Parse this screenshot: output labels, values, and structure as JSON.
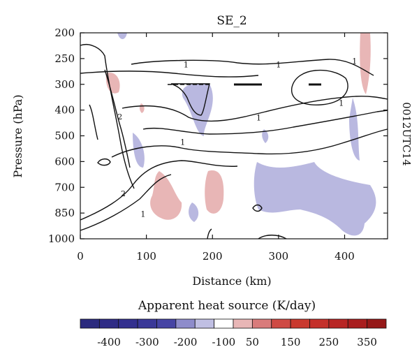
{
  "chart_data": {
    "type": "contour",
    "title": "SE_2",
    "side_label": "0012UTC14",
    "xlabel": "Distance (km)",
    "ylabel": "Pressure (hPa)",
    "xlim": [
      0,
      465
    ],
    "x_ticks": [
      0,
      100,
      200,
      300,
      400
    ],
    "y_ticks": [
      200,
      250,
      300,
      400,
      500,
      600,
      700,
      850,
      1000
    ],
    "contour_labels": [
      {
        "text": "1",
        "x": 160,
        "p": 262
      },
      {
        "text": "1",
        "x": 300,
        "p": 262
      },
      {
        "text": "1",
        "x": 415,
        "p": 255
      },
      {
        "text": "1",
        "x": 395,
        "p": 372
      },
      {
        "text": "1",
        "x": 270,
        "p": 430
      },
      {
        "text": "1",
        "x": 155,
        "p": 525
      },
      {
        "text": "2",
        "x": 60,
        "p": 425
      },
      {
        "text": "2",
        "x": 65,
        "p": 735
      },
      {
        "text": "1",
        "x": 95,
        "p": 855
      }
    ],
    "colorbar": {
      "title": "Apparent heat source (K/day)",
      "tick_labels": [
        "-400",
        "-300",
        "-200",
        "-100",
        "50",
        "150",
        "250",
        "350"
      ],
      "colors": [
        "#2b2a7e",
        "#2f2c86",
        "#33308f",
        "#3a3898",
        "#4644a4",
        "#8e8ccb",
        "#c0bfe3",
        "#ffffff",
        "#e8b6b6",
        "#d97b7b",
        "#cf4a44",
        "#c9392f",
        "#c4302a",
        "#b82524",
        "#a91d1e",
        "#951818"
      ]
    }
  }
}
